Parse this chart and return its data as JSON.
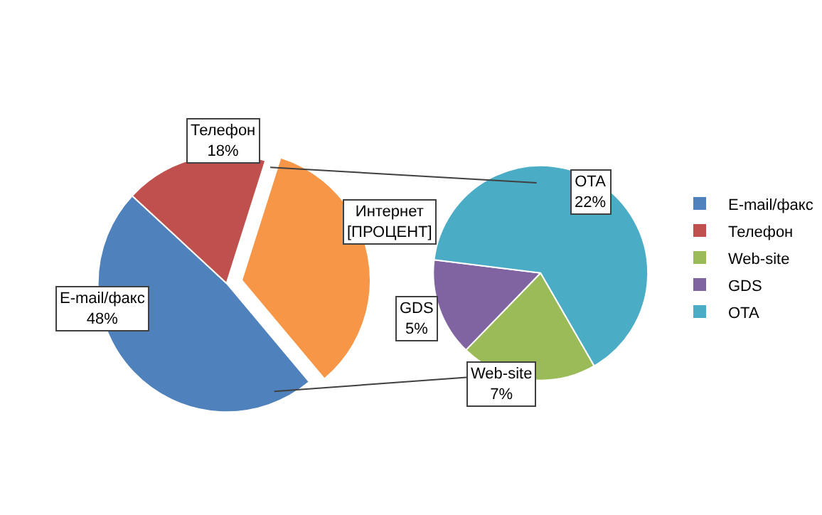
{
  "chart_data": [
    {
      "type": "pie",
      "categories": [
        "E-mail/факс",
        "Телефон",
        "Интернет"
      ],
      "values": [
        48,
        18,
        34
      ],
      "value_labels": [
        "48%",
        "18%",
        "[ПРОЦЕНТ]"
      ],
      "colors": [
        "#4f81bd",
        "#c0504d",
        "#f79646"
      ],
      "legend": "right"
    },
    {
      "type": "pie",
      "categories": [
        "Web-site",
        "GDS",
        "OTA"
      ],
      "values": [
        7,
        5,
        22
      ],
      "value_labels": [
        "7%",
        "5%",
        "22%"
      ],
      "colors": [
        "#9bbb59",
        "#8064a2",
        "#4bacc6"
      ],
      "legend": "right"
    }
  ]
}
